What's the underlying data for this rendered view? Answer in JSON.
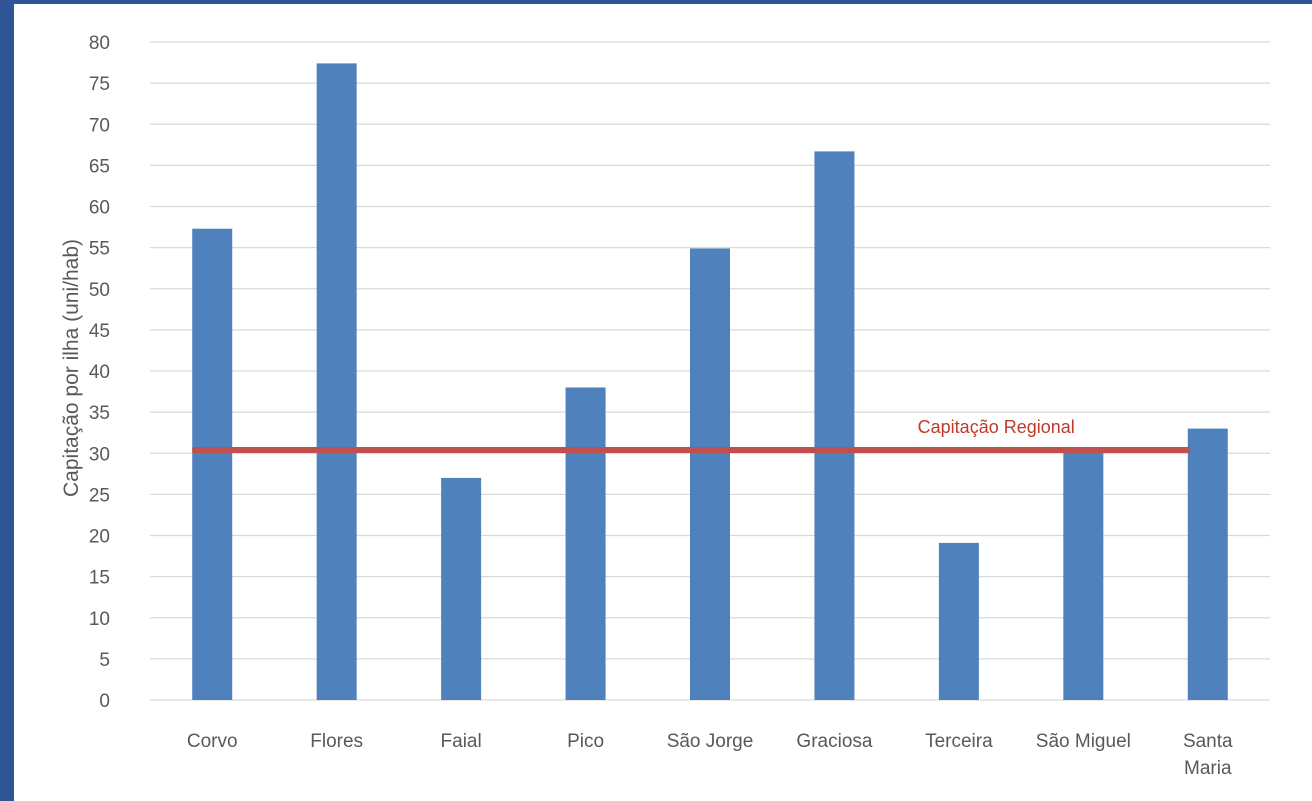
{
  "chart_data": {
    "type": "bar",
    "categories": [
      "Corvo",
      "Flores",
      "Faial",
      "Pico",
      "São Jorge",
      "Graciosa",
      "Terceira",
      "São Miguel",
      "Santa Maria"
    ],
    "category_lines": [
      [
        "Corvo"
      ],
      [
        "Flores"
      ],
      [
        "Faial"
      ],
      [
        "Pico"
      ],
      [
        "São Jorge"
      ],
      [
        "Graciosa"
      ],
      [
        "Terceira"
      ],
      [
        "São Miguel"
      ],
      [
        "Santa",
        "Maria"
      ]
    ],
    "values": [
      57.3,
      77.4,
      27.0,
      38.0,
      54.9,
      66.7,
      19.1,
      30.4,
      33.0
    ],
    "title": "",
    "xlabel": "",
    "ylabel": "Capitação por ilha (uni/hab)",
    "ylim": [
      0,
      80
    ],
    "yticks": [
      0,
      5,
      10,
      15,
      20,
      25,
      30,
      35,
      40,
      45,
      50,
      55,
      60,
      65,
      70,
      75,
      80
    ],
    "grid": true,
    "reference_line": {
      "label": "Capitação Regional",
      "value": 30.4
    },
    "colors": {
      "bar": "#4f81bd",
      "reference": "#c0504d",
      "grid": "#d9d9d9",
      "background": "#2f5597"
    }
  }
}
